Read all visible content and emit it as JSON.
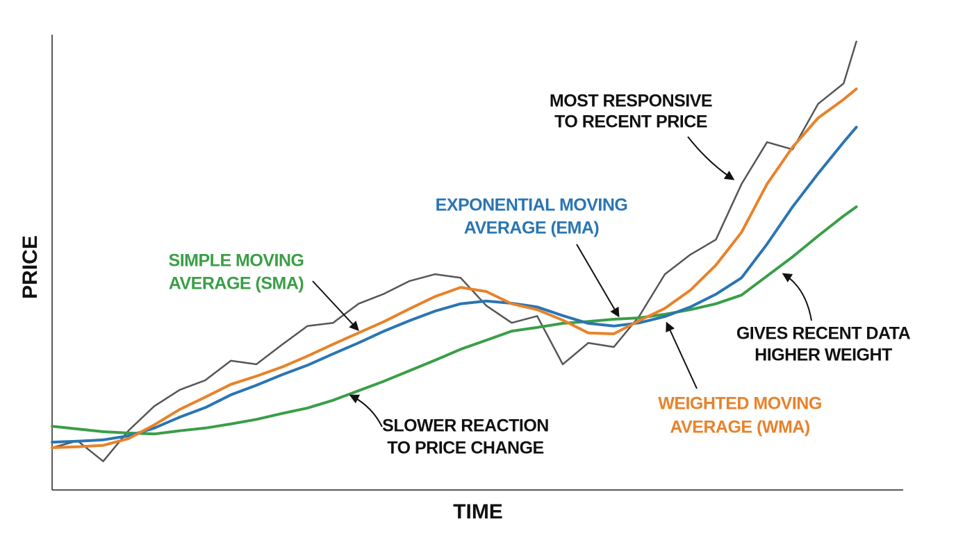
{
  "chart_data": {
    "type": "line",
    "xlabel": "TIME",
    "ylabel": "PRICE",
    "xlim": [
      0,
      100
    ],
    "ylim": [
      0,
      100
    ],
    "x": [
      0,
      3,
      6,
      9,
      12,
      15,
      18,
      21,
      24,
      27,
      30,
      33,
      36,
      39,
      42,
      45,
      48,
      51,
      54,
      57,
      60,
      63,
      66,
      69,
      72,
      75,
      78,
      81,
      84,
      87,
      90,
      93,
      94.5
    ],
    "series": [
      {
        "color": "#555555",
        "values": [
          9.3,
          10.8,
          6.3,
          13.1,
          18.4,
          22.0,
          24.1,
          28.4,
          27.6,
          31.9,
          36.0,
          36.7,
          40.9,
          43.1,
          45.9,
          47.4,
          46.6,
          40.5,
          36.7,
          38.2,
          27.6,
          32.3,
          31.4,
          38.2,
          47.4,
          51.7,
          55.0,
          67.2,
          76.4,
          74.8,
          84.8,
          89.3,
          98.5
        ]
      },
      {
        "color": "#3a9e47",
        "values": [
          14.0,
          13.4,
          12.8,
          12.5,
          12.3,
          13.0,
          13.6,
          14.5,
          15.5,
          16.8,
          18.0,
          19.7,
          21.8,
          23.9,
          26.2,
          28.5,
          30.9,
          32.9,
          34.9,
          35.7,
          36.6,
          37.0,
          37.5,
          37.8,
          38.6,
          39.6,
          40.9,
          42.8,
          47.0,
          51.2,
          55.8,
          60.2,
          62.2
        ]
      },
      {
        "color": "#2a75b3",
        "values": [
          10.5,
          10.7,
          11.0,
          11.9,
          13.6,
          16.0,
          18.1,
          20.9,
          23.0,
          25.3,
          27.4,
          29.9,
          32.3,
          34.9,
          37.2,
          39.3,
          40.9,
          41.5,
          41.0,
          40.2,
          38.3,
          36.6,
          36.0,
          36.7,
          38.1,
          40.2,
          43.0,
          46.6,
          54.0,
          62.2,
          69.5,
          76.4,
          79.7
        ]
      },
      {
        "color": "#e8822a",
        "values": [
          9.3,
          9.5,
          9.8,
          11.3,
          14.3,
          17.7,
          20.4,
          23.2,
          25.0,
          27.0,
          29.4,
          32.0,
          34.5,
          37.0,
          39.8,
          42.5,
          44.5,
          43.6,
          40.9,
          39.6,
          37.3,
          34.5,
          34.3,
          37.2,
          39.9,
          43.9,
          49.4,
          56.6,
          67.2,
          75.3,
          81.7,
          85.8,
          88.1
        ]
      }
    ],
    "annotations": [
      {
        "lines": [
          "MOST RESPONSIVE",
          "TO RECENT PRICE"
        ],
        "color": "#111111"
      },
      {
        "lines": [
          "EXPONENTIAL MOVING",
          "AVERAGE (EMA)"
        ],
        "color": "#2a75b3"
      },
      {
        "lines": [
          "SIMPLE MOVING",
          "AVERAGE (SMA)"
        ],
        "color": "#3a9e47"
      },
      {
        "lines": [
          "GIVES RECENT DATA",
          "HIGHER WEIGHT"
        ],
        "color": "#111111"
      },
      {
        "lines": [
          "WEIGHTED MOVING",
          "AVERAGE (WMA)"
        ],
        "color": "#e8822a"
      },
      {
        "lines": [
          "SLOWER REACTION",
          "TO PRICE CHANGE"
        ],
        "color": "#111111"
      }
    ]
  }
}
